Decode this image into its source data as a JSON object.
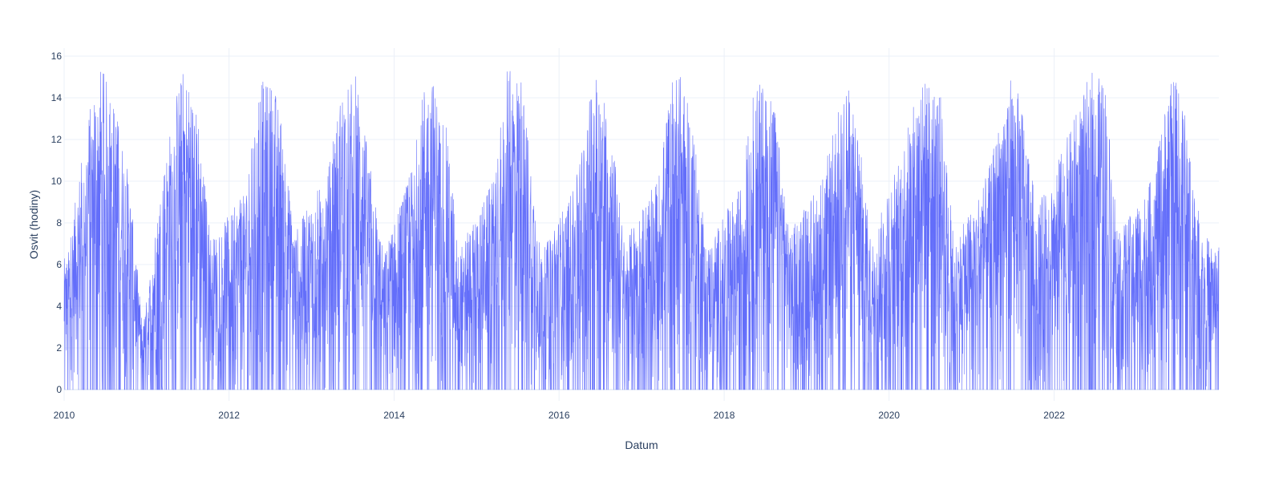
{
  "chart_data": {
    "type": "line",
    "title": "",
    "xlabel": "Datum",
    "ylabel": "Osvit (hodiny)",
    "x_range": [
      "2010-01-01",
      "2023-12-31"
    ],
    "ylim": [
      0,
      16
    ],
    "y_ticks": [
      "0",
      "2",
      "4",
      "6",
      "8",
      "10",
      "12",
      "14",
      "16"
    ],
    "x_ticks": [
      {
        "date": "2010-01-01",
        "label": "2010"
      },
      {
        "date": "2012-01-01",
        "label": "2012"
      },
      {
        "date": "2014-01-01",
        "label": "2014"
      },
      {
        "date": "2016-01-01",
        "label": "2016"
      },
      {
        "date": "2018-01-01",
        "label": "2018"
      },
      {
        "date": "2020-01-01",
        "label": "2020"
      },
      {
        "date": "2022-01-01",
        "label": "2022"
      }
    ],
    "grid": true,
    "legend": "none",
    "line_color": "#636efa",
    "series": [
      {
        "frequency": "daily",
        "values_estimated_monthly_peak": [
          {
            "x": "2010-01",
            "y": 6.3
          },
          {
            "x": "2010-04",
            "y": 13.2
          },
          {
            "x": "2010-06",
            "y": 15.6
          },
          {
            "x": "2010-08",
            "y": 13.7
          },
          {
            "x": "2010-10",
            "y": 10.2
          },
          {
            "x": "2010-12",
            "y": 2.9
          },
          {
            "x": "2011-03",
            "y": 10.5
          },
          {
            "x": "2011-05",
            "y": 14.4
          },
          {
            "x": "2011-06",
            "y": 15.5
          },
          {
            "x": "2011-08",
            "y": 13.2
          },
          {
            "x": "2011-10",
            "y": 7.2
          },
          {
            "x": "2012-03",
            "y": 9.5
          },
          {
            "x": "2012-05",
            "y": 14.9
          },
          {
            "x": "2012-07",
            "y": 14.7
          },
          {
            "x": "2012-08",
            "y": 13.5
          },
          {
            "x": "2012-10",
            "y": 7.5
          },
          {
            "x": "2013-03",
            "y": 10.6
          },
          {
            "x": "2013-05",
            "y": 14.5
          },
          {
            "x": "2013-07",
            "y": 15.1
          },
          {
            "x": "2013-09",
            "y": 10.9
          },
          {
            "x": "2013-11",
            "y": 6.5
          },
          {
            "x": "2014-03",
            "y": 10.4
          },
          {
            "x": "2014-05",
            "y": 14.8
          },
          {
            "x": "2014-06",
            "y": 15.1
          },
          {
            "x": "2014-08",
            "y": 13.0
          },
          {
            "x": "2014-10",
            "y": 6.7
          },
          {
            "x": "2015-03",
            "y": 10.0
          },
          {
            "x": "2015-05",
            "y": 15.3
          },
          {
            "x": "2015-07",
            "y": 15.3
          },
          {
            "x": "2015-08",
            "y": 12.6
          },
          {
            "x": "2015-10",
            "y": 6.5
          },
          {
            "x": "2016-03",
            "y": 10.0
          },
          {
            "x": "2016-05",
            "y": 14.0
          },
          {
            "x": "2016-06",
            "y": 15.4
          },
          {
            "x": "2016-08",
            "y": 13.1
          },
          {
            "x": "2016-10",
            "y": 7.1
          },
          {
            "x": "2017-03",
            "y": 10.2
          },
          {
            "x": "2017-05",
            "y": 15.0
          },
          {
            "x": "2017-06",
            "y": 15.4
          },
          {
            "x": "2017-08",
            "y": 12.7
          },
          {
            "x": "2017-10",
            "y": 6.8
          },
          {
            "x": "2018-03",
            "y": 9.8
          },
          {
            "x": "2018-05",
            "y": 14.6
          },
          {
            "x": "2018-07",
            "y": 15.0
          },
          {
            "x": "2018-08",
            "y": 13.5
          },
          {
            "x": "2018-10",
            "y": 7.5
          },
          {
            "x": "2019-03",
            "y": 10.3
          },
          {
            "x": "2019-05",
            "y": 13.2
          },
          {
            "x": "2019-06",
            "y": 15.3
          },
          {
            "x": "2019-08",
            "y": 12.7
          },
          {
            "x": "2019-10",
            "y": 7.0
          },
          {
            "x": "2020-03",
            "y": 12.3
          },
          {
            "x": "2020-05",
            "y": 14.6
          },
          {
            "x": "2020-06",
            "y": 15.0
          },
          {
            "x": "2020-08",
            "y": 14.2
          },
          {
            "x": "2020-10",
            "y": 7.0
          },
          {
            "x": "2021-03",
            "y": 10.4
          },
          {
            "x": "2021-05",
            "y": 13.5
          },
          {
            "x": "2021-06",
            "y": 15.3
          },
          {
            "x": "2021-08",
            "y": 13.7
          },
          {
            "x": "2021-10",
            "y": 8.6
          },
          {
            "x": "2022-03",
            "y": 12.5
          },
          {
            "x": "2022-05",
            "y": 14.4
          },
          {
            "x": "2022-06",
            "y": 15.4
          },
          {
            "x": "2022-08",
            "y": 14.6
          },
          {
            "x": "2022-10",
            "y": 7.5
          },
          {
            "x": "2023-03",
            "y": 10.2
          },
          {
            "x": "2023-05",
            "y": 14.0
          },
          {
            "x": "2023-06",
            "y": 15.2
          },
          {
            "x": "2023-08",
            "y": 12.8
          },
          {
            "x": "2023-10",
            "y": 7.6
          },
          {
            "x": "2023-12",
            "y": 6.9
          }
        ]
      }
    ]
  }
}
